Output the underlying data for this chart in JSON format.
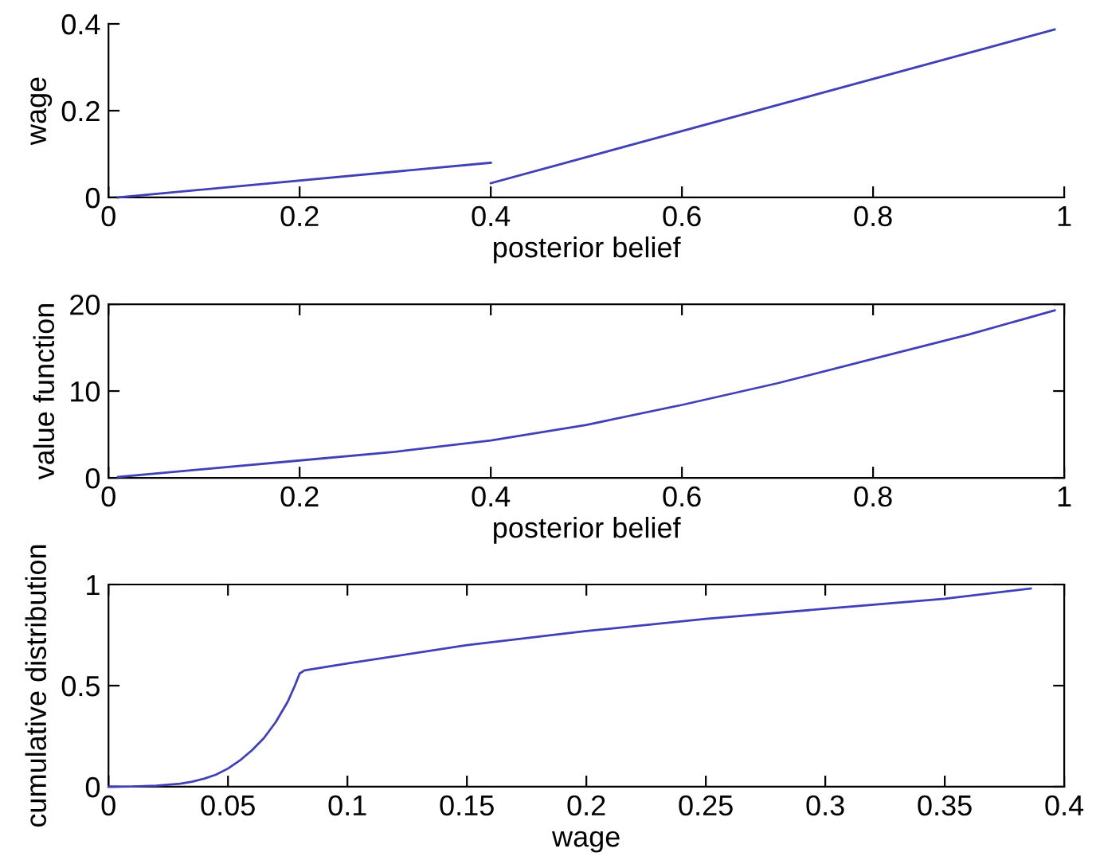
{
  "chart_data": [
    {
      "type": "line",
      "xlabel": "posterior belief",
      "ylabel": "wage",
      "xlim": [
        0,
        1
      ],
      "ylim": [
        0,
        0.4
      ],
      "xticks": [
        0,
        0.2,
        0.4,
        0.6,
        0.8,
        1
      ],
      "yticks": [
        0,
        0.2,
        0.4
      ],
      "grid": false,
      "legend": false,
      "series": [
        {
          "color": "#4040b8",
          "x": [
            0.01,
            0.4
          ],
          "values": [
            0,
            0.08
          ]
        },
        {
          "color": "#4040b8",
          "x": [
            0.4,
            0.99
          ],
          "values": [
            0.033,
            0.387
          ]
        }
      ]
    },
    {
      "type": "line",
      "xlabel": "posterior belief",
      "ylabel": "value function",
      "xlim": [
        0,
        1
      ],
      "ylim": [
        0,
        20
      ],
      "xticks": [
        0,
        0.2,
        0.4,
        0.6,
        0.8,
        1
      ],
      "yticks": [
        0,
        10,
        20
      ],
      "grid": false,
      "legend": false,
      "series": [
        {
          "color": "#4040b8",
          "x": [
            0.01,
            0.1,
            0.2,
            0.3,
            0.4,
            0.5,
            0.6,
            0.7,
            0.8,
            0.9,
            0.99
          ],
          "values": [
            0.1,
            1.0,
            2.0,
            3.0,
            4.3,
            6.1,
            8.4,
            10.9,
            13.7,
            16.5,
            19.3
          ]
        }
      ]
    },
    {
      "type": "line",
      "xlabel": "wage",
      "ylabel": "cumulative distribution",
      "xlim": [
        0,
        0.4
      ],
      "ylim": [
        0,
        1
      ],
      "xticks": [
        0,
        0.05,
        0.1,
        0.15,
        0.2,
        0.25,
        0.3,
        0.35,
        0.4
      ],
      "yticks": [
        0,
        0.5,
        1
      ],
      "grid": false,
      "legend": false,
      "series": [
        {
          "color": "#4040b8",
          "x": [
            0,
            0.01,
            0.02,
            0.03,
            0.035,
            0.04,
            0.045,
            0.05,
            0.055,
            0.06,
            0.065,
            0.07,
            0.075,
            0.078,
            0.08,
            0.082,
            0.1,
            0.15,
            0.2,
            0.25,
            0.3,
            0.35,
            0.386
          ],
          "values": [
            0,
            0.001,
            0.005,
            0.015,
            0.025,
            0.04,
            0.06,
            0.09,
            0.13,
            0.18,
            0.24,
            0.32,
            0.42,
            0.5,
            0.56,
            0.575,
            0.61,
            0.7,
            0.77,
            0.83,
            0.88,
            0.93,
            0.98
          ]
        }
      ]
    }
  ]
}
